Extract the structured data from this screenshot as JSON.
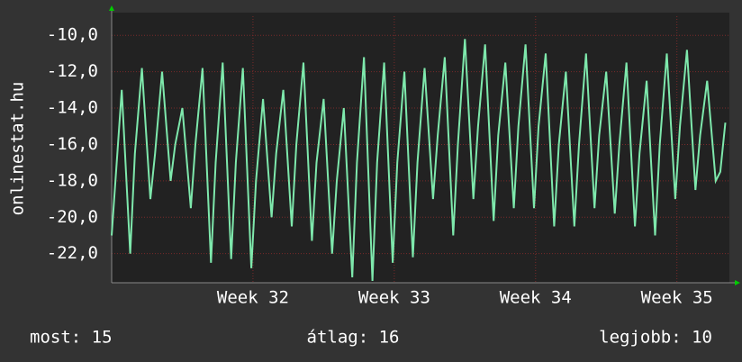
{
  "chart_data": {
    "type": "line",
    "y_label": "onlinestat.hu",
    "xlim": [
      0,
      30.6
    ],
    "ylim": [
      -23.6,
      -8.95
    ],
    "xticks": [
      {
        "value": 7,
        "label": "Week 32"
      },
      {
        "value": 14,
        "label": "Week 33"
      },
      {
        "value": 21,
        "label": "Week 34"
      },
      {
        "value": 28,
        "label": "Week 35"
      }
    ],
    "yticks": [
      {
        "value": -10,
        "label": "-10,0"
      },
      {
        "value": -12,
        "label": "-12,0"
      },
      {
        "value": -14,
        "label": "-14,0"
      },
      {
        "value": -16,
        "label": "-16,0"
      },
      {
        "value": -18,
        "label": "-18,0"
      },
      {
        "value": -20,
        "label": "-20,0"
      },
      {
        "value": -22,
        "label": "-22,0"
      }
    ],
    "grid": true,
    "series": [
      {
        "color": "#7ee8ac",
        "x": [
          0,
          0.5,
          0.92,
          1.15,
          1.5,
          1.92,
          2.15,
          2.5,
          2.92,
          3.15,
          3.5,
          3.92,
          4.15,
          4.5,
          4.92,
          5.15,
          5.5,
          5.92,
          6.15,
          6.5,
          6.92,
          7.15,
          7.5,
          7.92,
          8.15,
          8.5,
          8.92,
          9.15,
          9.5,
          9.92,
          10.15,
          10.5,
          10.92,
          11.15,
          11.5,
          11.92,
          12.15,
          12.5,
          12.92,
          13.15,
          13.5,
          13.92,
          14.15,
          14.5,
          14.92,
          15.15,
          15.5,
          15.92,
          16.15,
          16.5,
          16.92,
          17.15,
          17.5,
          17.92,
          18.15,
          18.5,
          18.92,
          19.15,
          19.5,
          19.92,
          20.15,
          20.5,
          20.92,
          21.15,
          21.5,
          21.92,
          22.15,
          22.5,
          22.92,
          23.15,
          23.5,
          23.92,
          24.15,
          24.5,
          24.92,
          25.15,
          25.5,
          25.92,
          26.15,
          26.5,
          26.92,
          27.15,
          27.5,
          27.92,
          28.15,
          28.5,
          28.92,
          29.15,
          29.5,
          29.92,
          30.15,
          30.4
        ],
        "values": [
          -21,
          -13,
          -22,
          -16.5,
          -11.8,
          -19,
          -16.5,
          -12,
          -18,
          -16,
          -14,
          -19.5,
          -16,
          -11.8,
          -22.5,
          -17,
          -11.5,
          -22.3,
          -17,
          -11.8,
          -22.8,
          -18,
          -13.5,
          -20,
          -16.5,
          -13,
          -20.5,
          -16,
          -11.5,
          -21.3,
          -17,
          -13.5,
          -22,
          -18,
          -14,
          -23.3,
          -17,
          -11.2,
          -23.5,
          -17,
          -11.5,
          -22.5,
          -17,
          -12,
          -22.2,
          -17,
          -11.8,
          -19,
          -15.5,
          -11.2,
          -21,
          -16,
          -10.2,
          -19,
          -15,
          -10.5,
          -20.2,
          -15.5,
          -11.5,
          -19.5,
          -15,
          -10.5,
          -19.5,
          -15,
          -11,
          -20.5,
          -16,
          -12,
          -20.5,
          -16,
          -11,
          -19.5,
          -15.5,
          -12,
          -19.8,
          -16,
          -11.5,
          -20.5,
          -16.5,
          -12.5,
          -21,
          -16,
          -11,
          -19,
          -15,
          -10.8,
          -18.5,
          -15.5,
          -12.5,
          -18,
          -17.5,
          -14.8
        ]
      }
    ]
  },
  "footer": [
    "most: 15",
    "átlag: 16",
    "legjobb: 10"
  ]
}
